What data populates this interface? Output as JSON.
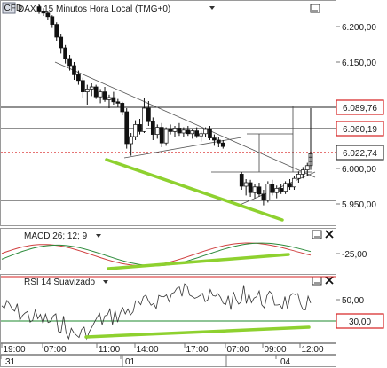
{
  "main_panel": {
    "instrument": "DAX.I",
    "title": "15 Minutos Hora Local (TMG+0)",
    "y_ticks": [
      "6.200,00",
      "6.150,00",
      "6.000,00",
      "5.950,00"
    ],
    "price_boxes": [
      {
        "label": "6.089,76",
        "color": "#d62020",
        "style": "outline"
      },
      {
        "label": "6.060,19",
        "color": "#d62020",
        "style": "outline"
      },
      {
        "label": "6.022,74",
        "color": "#333333",
        "style": "outline"
      }
    ]
  },
  "macd_panel": {
    "title": "MACD 26; 12; 9",
    "y_tick": "-25,00"
  },
  "rsi_panel": {
    "title": "RSI 14 Suavizado",
    "y_ticks": [
      "50,00",
      "30,00"
    ]
  },
  "time_axis": {
    "labels": [
      "19:00",
      "07:00",
      "11:00",
      "14:00",
      "17:00",
      "07:00",
      "09:00",
      "12:00"
    ],
    "dates": [
      "31",
      "01",
      "04"
    ]
  },
  "chart_data": {
    "type": "candlestick",
    "ylim": [
      5925,
      6235
    ],
    "candles": [
      [
        6228,
        6232,
        6218,
        6222
      ],
      [
        6222,
        6226,
        6215,
        6219
      ],
      [
        6219,
        6222,
        6210,
        6214
      ],
      [
        6214,
        6216,
        6198,
        6203
      ],
      [
        6203,
        6206,
        6180,
        6185
      ],
      [
        6185,
        6190,
        6162,
        6170
      ],
      [
        6170,
        6174,
        6148,
        6155
      ],
      [
        6155,
        6160,
        6138,
        6145
      ],
      [
        6145,
        6150,
        6125,
        6132
      ],
      [
        6132,
        6138,
        6118,
        6124
      ],
      [
        6124,
        6128,
        6100,
        6108
      ],
      [
        6108,
        6118,
        6090,
        6112
      ],
      [
        6112,
        6120,
        6102,
        6115
      ],
      [
        6115,
        6118,
        6098,
        6101
      ],
      [
        6101,
        6112,
        6092,
        6108
      ],
      [
        6108,
        6115,
        6094,
        6097
      ],
      [
        6097,
        6104,
        6085,
        6100
      ],
      [
        6100,
        6108,
        6090,
        6094
      ],
      [
        6094,
        6098,
        6086,
        6092
      ],
      [
        6092,
        6094,
        6075,
        6080
      ],
      [
        6080,
        6085,
        6028,
        6035
      ],
      [
        6035,
        6050,
        6018,
        6045
      ],
      [
        6045,
        6068,
        6040,
        6062
      ],
      [
        6062,
        6070,
        6048,
        6052
      ],
      [
        6052,
        6100,
        6050,
        6085
      ],
      [
        6085,
        6095,
        6060,
        6066
      ],
      [
        6066,
        6072,
        6040,
        6048
      ],
      [
        6048,
        6062,
        6042,
        6058
      ],
      [
        6058,
        6064,
        6030,
        6036
      ],
      [
        6036,
        6058,
        6032,
        6055
      ],
      [
        6055,
        6062,
        6048,
        6052
      ],
      [
        6052,
        6060,
        6045,
        6057
      ],
      [
        6057,
        6064,
        6046,
        6050
      ],
      [
        6050,
        6058,
        6044,
        6054
      ],
      [
        6054,
        6060,
        6046,
        6049
      ],
      [
        6049,
        6056,
        6042,
        6053
      ],
      [
        6053,
        6058,
        6043,
        6046
      ],
      [
        6046,
        6052,
        6038,
        6049
      ],
      [
        6049,
        6058,
        6045,
        6055
      ],
      [
        6055,
        6060,
        6040,
        6043
      ],
      [
        6043,
        6048,
        6032,
        6040
      ],
      [
        6040,
        6044,
        6030,
        6036
      ],
      [
        6036,
        6040,
        6028,
        6031
      ],
      [
        5992,
        5995,
        5970,
        5975
      ],
      [
        5975,
        5985,
        5962,
        5980
      ],
      [
        5980,
        5984,
        5960,
        5966
      ],
      [
        5966,
        5978,
        5958,
        5974
      ],
      [
        5974,
        5980,
        5960,
        5964
      ],
      [
        5964,
        5970,
        5948,
        5955
      ],
      [
        5955,
        5982,
        5952,
        5978
      ],
      [
        5978,
        5984,
        5962,
        5966
      ],
      [
        5966,
        5976,
        5958,
        5972
      ],
      [
        5972,
        5978,
        5964,
        5968
      ],
      [
        5968,
        5982,
        5964,
        5979
      ],
      [
        5979,
        5985,
        5970,
        5974
      ],
      [
        5974,
        5990,
        5970,
        5986
      ],
      [
        5986,
        5996,
        5980,
        5992
      ],
      [
        5992,
        6002,
        5986,
        5998
      ],
      [
        5998,
        6008,
        5990,
        6004
      ],
      [
        6004,
        6085,
        5998,
        6010
      ],
      [
        6010,
        6020,
        6004,
        6016
      ],
      [
        6016,
        6025,
        6010,
        6021
      ],
      [
        6021,
        6028,
        6014,
        6022
      ]
    ],
    "levels": [
      6089.76,
      6060.19,
      6022.74
    ],
    "support_level": 5950
  }
}
